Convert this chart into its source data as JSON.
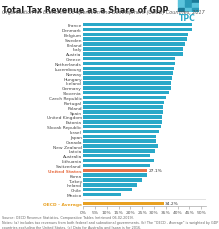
{
  "title": "Total Tax Revenue as a Share of GDP",
  "subtitle": "Organisation for Economic Co-operation and Development (OECD) Countries, 2017",
  "countries": [
    "France",
    "Denmark",
    "Belgium",
    "Sweden",
    "Finland",
    "Italy",
    "Austria",
    "Greece",
    "Netherlands",
    "Luxembourg",
    "Norway",
    "Hungary",
    "Iceland",
    "Germany",
    "Slovenia",
    "Czech Republic",
    "Portugal",
    "Poland",
    "Spain",
    "United Kingdom",
    "Estonia",
    "Slovak Republic",
    "Israel",
    "Japan",
    "Canada",
    "New Zealand",
    "Latvia",
    "Australia",
    "Lithuania",
    "Switzerland",
    "United States",
    "Korea",
    "Turkey",
    "Ireland",
    "Chile",
    "Mexico"
  ],
  "values": [
    46.2,
    46.0,
    44.6,
    44.0,
    43.3,
    42.4,
    42.2,
    38.9,
    38.8,
    38.7,
    38.2,
    37.7,
    37.4,
    37.4,
    36.5,
    35.3,
    34.4,
    33.9,
    33.7,
    33.3,
    33.2,
    32.9,
    32.1,
    30.7,
    30.7,
    31.5,
    30.4,
    28.5,
    29.8,
    28.5,
    27.1,
    26.9,
    24.9,
    22.8,
    20.7,
    16.2
  ],
  "oecd_average": 34.2,
  "highlight_country": "United States",
  "highlight_color": "#e8734a",
  "bar_color": "#29a8c8",
  "oecd_color": "#e8a020",
  "title_fontsize": 5.8,
  "subtitle_fontsize": 3.5,
  "label_fontsize": 3.2,
  "tick_fontsize": 3.2,
  "footer_fontsize": 2.4,
  "us_label": "27.1%",
  "oecd_label": "34.2%",
  "background_color": "#ffffff",
  "tpc_colors": [
    "#5bc4dd",
    "#2a9ab8",
    "#1a7a98",
    "#5bc4dd",
    "#2a9ab8",
    "#5bc4dd",
    "#1a7a98",
    "#5bc4dd",
    "#2a9ab8"
  ]
}
